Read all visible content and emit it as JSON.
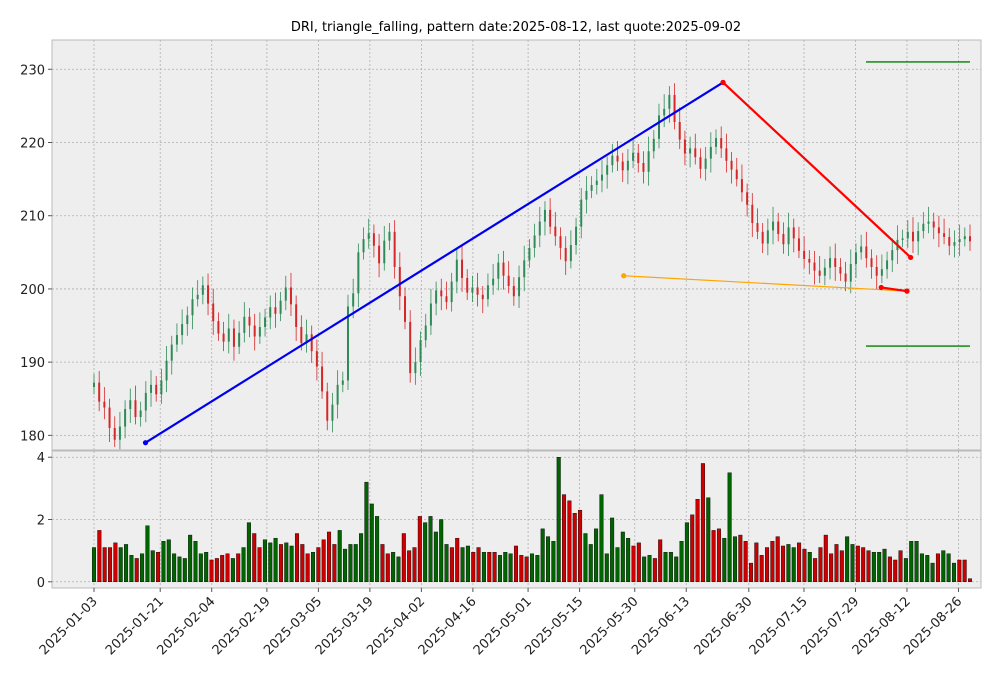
{
  "chart_data": {
    "type": "candlestick",
    "title": "DRI, triangle_falling, pattern date:2025-08-12, last quote:2025-09-02",
    "xlabel": "",
    "ylabel": "",
    "x_ticks": [
      "2025-01-03",
      "2025-01-21",
      "2025-02-04",
      "2025-02-19",
      "2025-03-05",
      "2025-03-19",
      "2025-04-02",
      "2025-04-16",
      "2025-05-01",
      "2025-05-15",
      "2025-05-30",
      "2025-06-13",
      "2025-06-30",
      "2025-07-15",
      "2025-07-29",
      "2025-08-12",
      "2025-08-26"
    ],
    "price_panel": {
      "ylim": [
        178,
        234
      ],
      "y_ticks": [
        180,
        190,
        200,
        210,
        220,
        230
      ],
      "grid": true,
      "close": [
        187.2,
        184.6,
        183.8,
        181.0,
        179.4,
        181.2,
        183.6,
        184.8,
        182.5,
        183.4,
        185.8,
        186.9,
        185.6,
        187.5,
        190.2,
        192.4,
        193.7,
        195.2,
        196.4,
        198.6,
        199.2,
        200.5,
        198.0,
        195.6,
        193.9,
        192.8,
        194.6,
        192.1,
        194.0,
        196.2,
        195.0,
        193.5,
        194.8,
        196.1,
        197.5,
        196.6,
        198.4,
        200.2,
        197.9,
        194.8,
        192.6,
        193.8,
        191.5,
        189.4,
        186.0,
        182.0,
        184.2,
        186.9,
        187.5,
        197.6,
        199.4,
        205.0,
        206.8,
        207.6,
        205.9,
        203.5,
        206.6,
        207.8,
        203.0,
        199.0,
        195.5,
        188.5,
        190.0,
        193.0,
        195.0,
        198.0,
        199.8,
        199.0,
        198.2,
        201.0,
        204.0,
        201.5,
        199.5,
        200.2,
        199.2,
        198.6,
        200.5,
        201.4,
        203.6,
        201.8,
        200.4,
        199.0,
        201.6,
        203.9,
        205.6,
        207.3,
        209.2,
        210.8,
        208.5,
        207.2,
        205.6,
        203.8,
        206.0,
        208.5,
        212.2,
        213.4,
        214.2,
        214.8,
        215.6,
        216.9,
        218.2,
        217.4,
        216.2,
        217.5,
        218.6,
        217.2,
        216.0,
        218.8,
        220.5,
        223.7,
        224.6,
        226.5,
        222.8,
        220.4,
        218.5,
        219.2,
        218.0,
        216.4,
        217.8,
        219.4,
        220.6,
        219.2,
        217.5,
        216.3,
        215.0,
        213.2,
        211.5,
        209.0,
        207.8,
        206.2,
        208.0,
        209.2,
        207.5,
        206.1,
        208.4,
        206.9,
        205.2,
        204.1,
        203.6,
        202.5,
        201.8,
        202.9,
        204.2,
        203.0,
        202.1,
        201.0,
        203.4,
        205.0,
        205.8,
        204.2,
        203.0,
        201.8,
        202.7,
        203.9,
        205.3,
        206.7,
        206.9,
        207.8,
        206.5,
        207.9,
        208.9,
        209.2,
        208.4,
        207.6,
        207.1,
        205.9,
        206.4,
        206.8,
        207.2,
        206.5
      ],
      "trendlines": [
        {
          "points": [
            [
              "2025-01-17",
              179.0
            ],
            [
              "2025-06-23",
              228.2
            ]
          ],
          "color": "#0000ee"
        },
        {
          "points": [
            [
              "2025-06-23",
              228.2
            ],
            [
              "2025-08-13",
              204.3
            ]
          ],
          "color": "#ff0000"
        },
        {
          "points": [
            [
              "2025-05-27",
              201.8
            ],
            [
              "2025-08-12",
              199.7
            ]
          ],
          "color": "#ffa500"
        },
        {
          "points": [
            [
              "2025-08-05",
              200.2
            ],
            [
              "2025-08-12",
              199.7
            ]
          ],
          "color": "#ff0000"
        }
      ],
      "target_levels": [
        {
          "value": 231.0,
          "color": "#008000"
        },
        {
          "value": 192.2,
          "color": "#008000"
        }
      ]
    },
    "volume_panel": {
      "ylim": [
        -0.2,
        4.2
      ],
      "y_ticks": [
        0,
        2,
        4
      ],
      "grid": true,
      "values": [
        1.1,
        1.65,
        1.1,
        1.1,
        1.25,
        1.1,
        1.2,
        0.85,
        0.75,
        0.9,
        1.8,
        1.0,
        0.95,
        1.3,
        1.35,
        0.9,
        0.8,
        0.75,
        1.5,
        1.3,
        0.9,
        0.95,
        0.7,
        0.75,
        0.85,
        0.9,
        0.75,
        0.9,
        1.1,
        1.9,
        1.55,
        1.1,
        1.35,
        1.25,
        1.4,
        1.2,
        1.25,
        1.15,
        1.55,
        1.2,
        0.9,
        0.95,
        1.1,
        1.35,
        1.6,
        1.2,
        1.65,
        1.05,
        1.2,
        1.2,
        1.55,
        3.2,
        2.5,
        2.1,
        1.2,
        0.9,
        0.95,
        0.8,
        1.55,
        1.0,
        1.1,
        2.1,
        1.9,
        2.1,
        1.6,
        2.0,
        1.2,
        1.1,
        1.4,
        1.1,
        1.15,
        0.95,
        1.1,
        0.95,
        0.95,
        0.95,
        0.85,
        0.95,
        0.9,
        1.15,
        0.85,
        0.8,
        0.9,
        0.85,
        1.7,
        1.45,
        1.3,
        4.0,
        2.8,
        2.6,
        2.2,
        2.3,
        1.55,
        1.2,
        1.7,
        2.8,
        0.9,
        2.05,
        1.1,
        1.6,
        1.4,
        1.15,
        1.25,
        0.8,
        0.85,
        0.75,
        1.35,
        0.95,
        0.95,
        0.8,
        1.3,
        1.9,
        2.15,
        2.65,
        3.8,
        2.7,
        1.65,
        1.7,
        1.4,
        3.5,
        1.45,
        1.5,
        1.3,
        0.6,
        1.25,
        0.85,
        1.1,
        1.3,
        1.45,
        1.15,
        1.2,
        1.1,
        1.25,
        1.05,
        0.95,
        0.75,
        1.1,
        1.5,
        0.9,
        1.2,
        1.0,
        1.45,
        1.2,
        1.15,
        1.1,
        1.0,
        0.95,
        0.95,
        1.05,
        0.8,
        0.7,
        1.0,
        0.75,
        1.3,
        1.3,
        0.9,
        0.85,
        0.6,
        0.9,
        1.0,
        0.9,
        0.6,
        0.7,
        0.7,
        0.1
      ]
    }
  }
}
